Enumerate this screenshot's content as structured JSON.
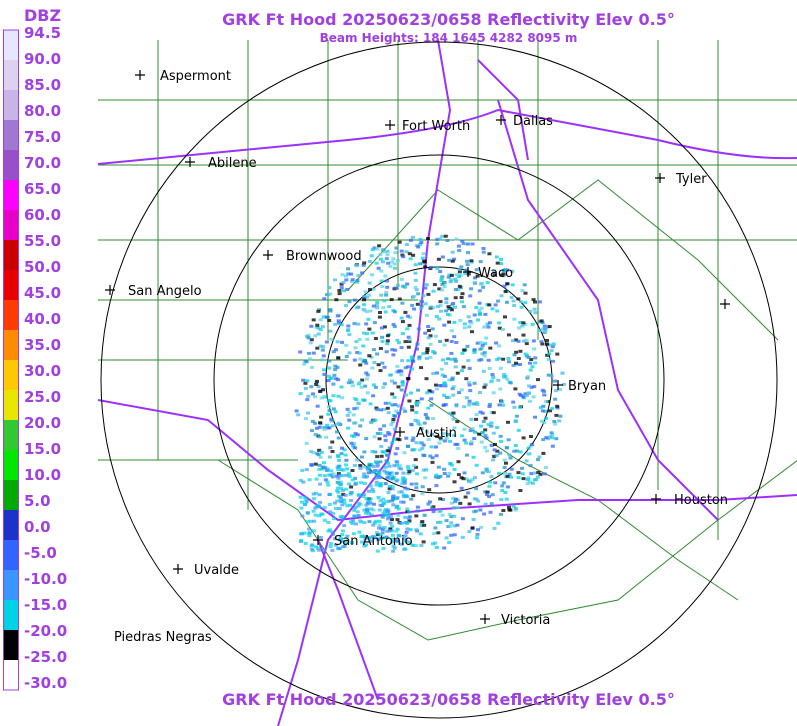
{
  "header": {
    "title": "GRK Ft Hood 20250623/0658 Reflectivity Elev 0.5°",
    "beam_heights": "Beam Heights: 184 1645 4282 8095 m"
  },
  "footer": {
    "title": "GRK Ft Hood 20250623/0658 Reflectivity Elev 0.5°"
  },
  "legend": {
    "unit": "DBZ",
    "labels": [
      "94.5",
      "90.0",
      "85.0",
      "80.0",
      "75.0",
      "70.0",
      "65.0",
      "60.0",
      "55.0",
      "50.0",
      "45.0",
      "40.0",
      "35.0",
      "30.0",
      "25.0",
      "20.0",
      "15.0",
      "10.0",
      "5.0",
      "0.0",
      "-5.0",
      "-10.0",
      "-15.0",
      "-20.0",
      "-25.0",
      "-30.0"
    ],
    "colors": [
      "#e6e6ff",
      "#dcd2f0",
      "#c8b4e6",
      "#a078d2",
      "#9650c8",
      "#ff00ff",
      "#e600c8",
      "#c80000",
      "#e60000",
      "#ff3c00",
      "#ff8c00",
      "#ffc800",
      "#e6e600",
      "#32c832",
      "#00e600",
      "#00aa00",
      "#1e32c8",
      "#3264ff",
      "#3c96ff",
      "#00d2e6",
      "#000000",
      "#ffffff"
    ]
  },
  "cities": [
    {
      "name": "Aspermont"
    },
    {
      "name": "Fort Worth"
    },
    {
      "name": "Dallas"
    },
    {
      "name": "Abilene"
    },
    {
      "name": "Tyler"
    },
    {
      "name": "Brownwood"
    },
    {
      "name": "Waco"
    },
    {
      "name": "San Angelo"
    },
    {
      "name": "Bryan"
    },
    {
      "name": "Austin"
    },
    {
      "name": "Houston"
    },
    {
      "name": "San Antonio"
    },
    {
      "name": "Uvalde"
    },
    {
      "name": "Victoria"
    },
    {
      "name": "Piedras Negras"
    },
    {
      "name": ""
    }
  ]
}
